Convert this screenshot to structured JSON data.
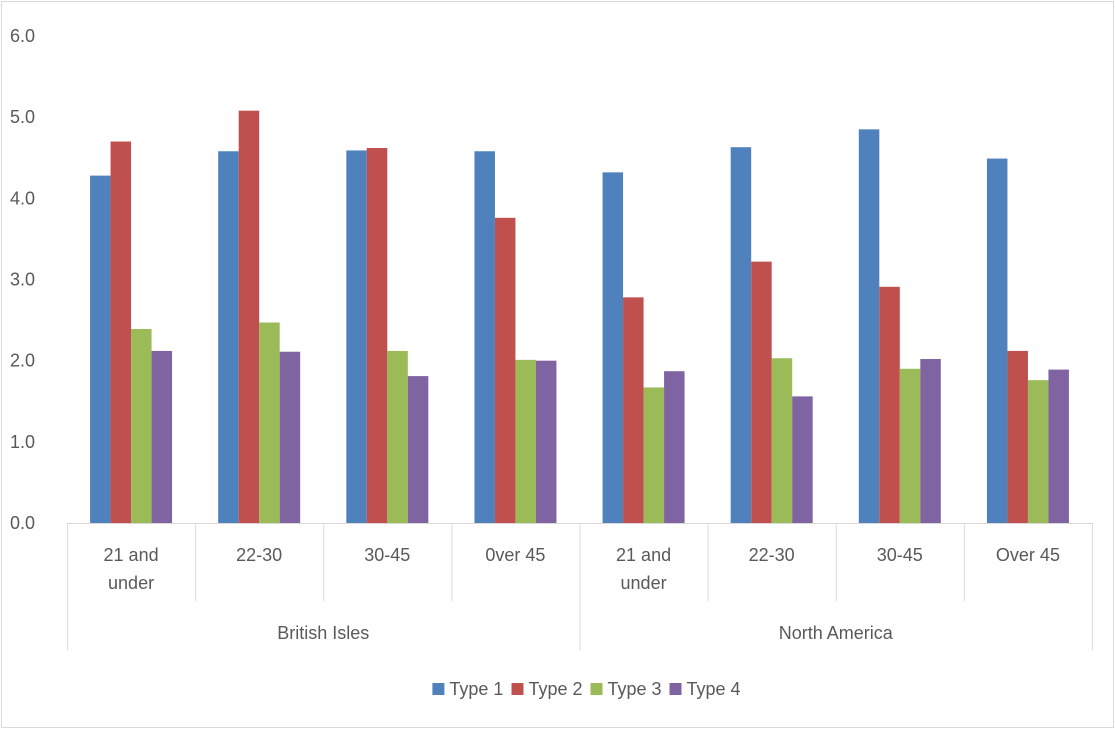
{
  "chart_data": {
    "type": "bar",
    "title": "",
    "xlabel": "",
    "ylabel": "",
    "ylim": [
      0,
      6
    ],
    "y_ticks": [
      "0.0",
      "1.0",
      "2.0",
      "3.0",
      "4.0",
      "5.0",
      "6.0"
    ],
    "grid": false,
    "legend_position": "bottom",
    "groups": [
      {
        "name": "British Isles",
        "categories": [
          [
            "21 and",
            "under"
          ],
          [
            "22-30"
          ],
          [
            "30-45"
          ],
          [
            "0ver 45"
          ]
        ]
      },
      {
        "name": "North America",
        "categories": [
          [
            "21 and",
            "under"
          ],
          [
            "22-30"
          ],
          [
            "30-45"
          ],
          [
            "Over 45"
          ]
        ]
      }
    ],
    "series": [
      {
        "name": "Type 1",
        "color": "#4f81bd",
        "values": [
          4.28,
          4.58,
          4.59,
          4.58,
          4.32,
          4.63,
          4.85,
          4.49
        ]
      },
      {
        "name": "Type 2",
        "color": "#c0504d",
        "values": [
          4.7,
          5.08,
          4.62,
          3.76,
          2.78,
          3.22,
          2.91,
          2.12
        ]
      },
      {
        "name": "Type 3",
        "color": "#9bbb59",
        "values": [
          2.39,
          2.47,
          2.12,
          2.01,
          1.67,
          2.03,
          1.9,
          1.76
        ]
      },
      {
        "name": "Type 4",
        "color": "#8064a2",
        "values": [
          2.12,
          2.11,
          1.81,
          2.0,
          1.87,
          1.56,
          2.02,
          1.89
        ]
      }
    ]
  }
}
